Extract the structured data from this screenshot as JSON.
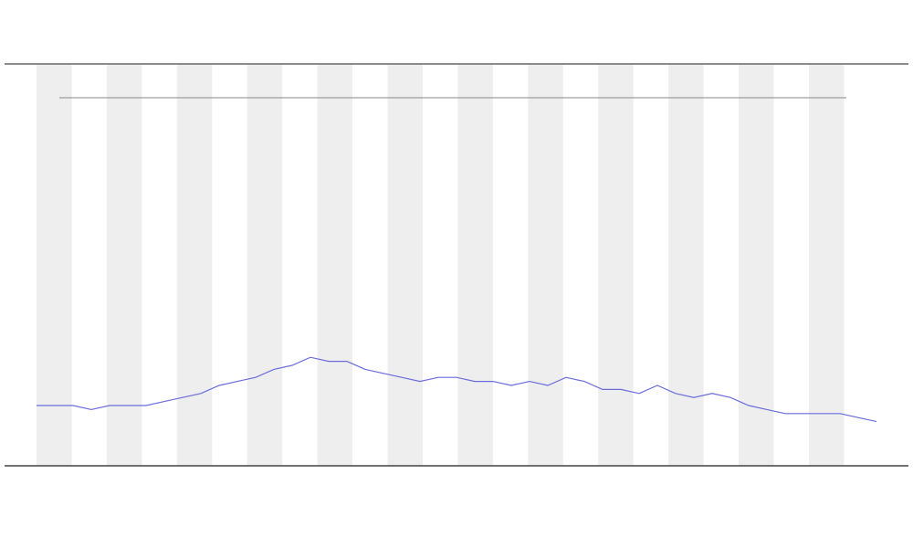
{
  "chart_data": {
    "type": "line",
    "x": [
      0,
      1,
      2,
      3,
      4,
      5,
      6,
      7,
      8,
      9,
      10,
      11,
      12,
      13,
      14,
      15,
      16,
      17,
      18,
      19,
      20,
      21,
      22,
      23,
      24,
      25,
      26,
      27,
      28,
      29,
      30,
      31,
      32,
      33,
      34,
      35,
      36,
      37,
      38,
      39,
      40,
      41,
      42,
      43,
      44,
      45,
      46
    ],
    "series": [
      {
        "color": "#6b6bdc",
        "values": [
          15,
          15,
          15,
          14,
          15,
          15,
          15,
          16,
          17,
          18,
          20,
          21,
          22,
          24,
          25,
          27,
          26,
          26,
          24,
          23,
          22,
          21,
          22,
          22,
          21,
          21,
          20,
          21,
          20,
          22,
          21,
          19,
          19,
          18,
          20,
          18,
          17,
          18,
          17,
          15,
          14,
          13,
          13,
          13,
          13,
          12,
          11
        ]
      }
    ],
    "xlim": [
      0,
      46
    ],
    "ylim": [
      0,
      100
    ],
    "bands": true
  }
}
